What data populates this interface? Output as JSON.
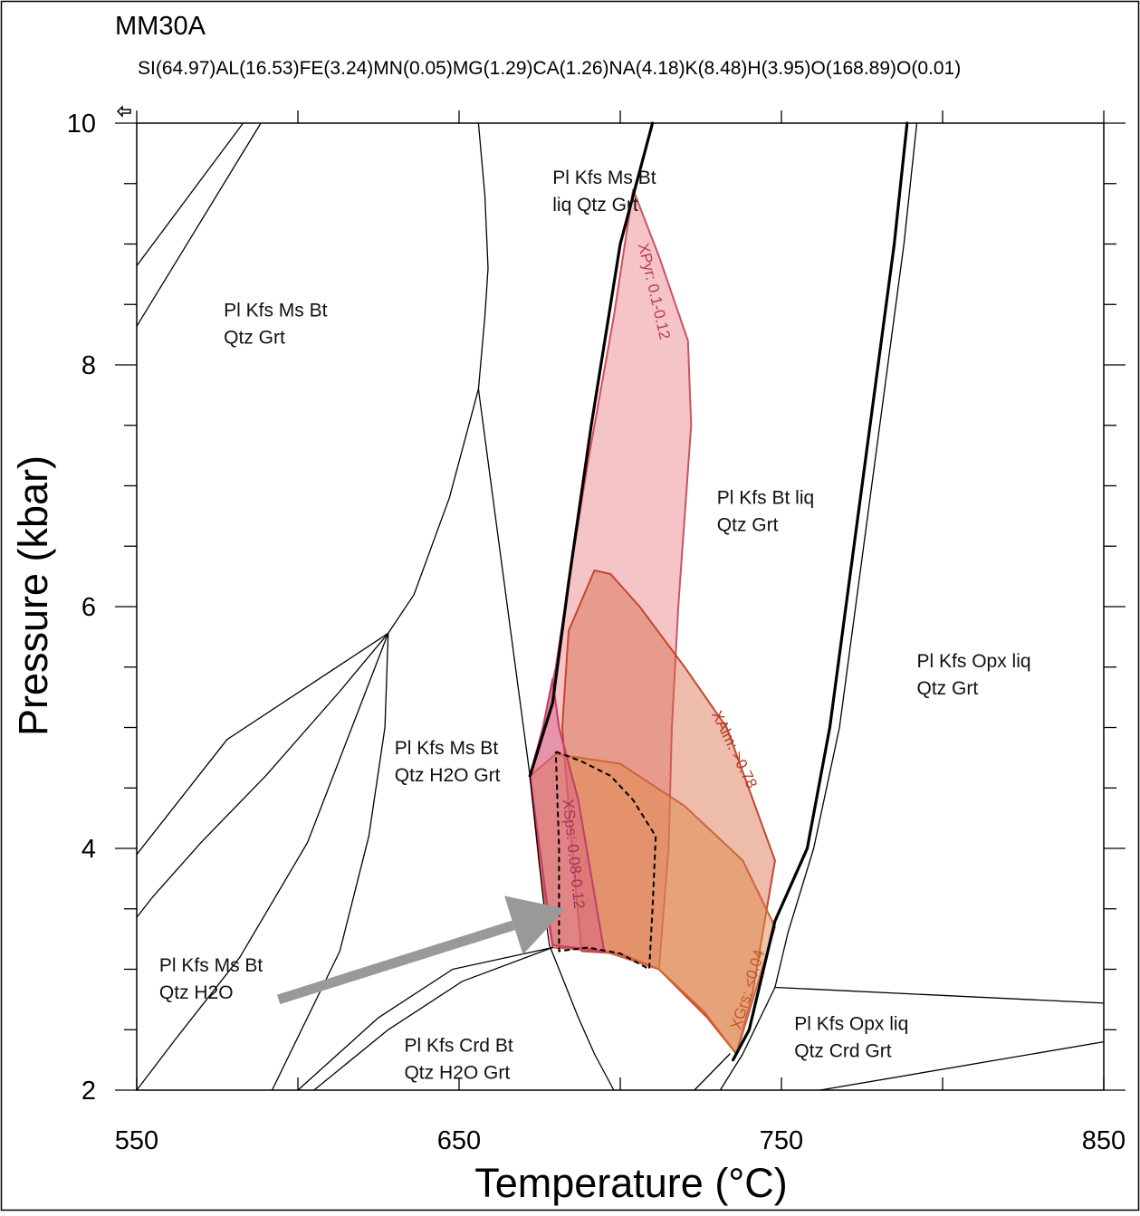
{
  "chart_data": {
    "type": "phase-diagram",
    "title": "MM30A",
    "subtitle": "SI(64.97)AL(16.53)FE(3.24)MN(0.05)MG(1.29)CA(1.26)NA(4.18)K(8.48)H(3.95)O(168.89)O(0.01)",
    "xlabel": "Temperature (°C)",
    "ylabel": "Pressure (kbar)",
    "xlim": [
      550,
      850
    ],
    "ylim": [
      2,
      10
    ],
    "x_tick_labels": [
      "550",
      "650",
      "750",
      "850"
    ],
    "y_tick_labels": [
      "2",
      "4",
      "6",
      "8",
      "10"
    ],
    "x_ticks": [
      550,
      600,
      650,
      700,
      750,
      800,
      850
    ],
    "y_ticks": [
      2,
      2.5,
      3,
      3.5,
      4,
      4.5,
      5,
      5.5,
      6,
      6.5,
      7,
      7.5,
      8,
      8.5,
      9,
      9.5,
      10
    ],
    "grid": false,
    "field_labels": [
      {
        "lines": [
          "Pl Kfs Ms Bt",
          "Qtz Grt"
        ],
        "x": 577,
        "y": 8.4
      },
      {
        "lines": [
          "Pl Kfs Ms Bt",
          "liq Qtz Grt"
        ],
        "x": 679,
        "y": 9.5
      },
      {
        "lines": [
          "Pl Kfs Bt liq",
          "Qtz Grt"
        ],
        "x": 730,
        "y": 6.85
      },
      {
        "lines": [
          "Pl Kfs Opx liq",
          "Qtz Grt"
        ],
        "x": 792,
        "y": 5.5
      },
      {
        "lines": [
          "Pl Kfs Ms Bt",
          "Qtz H2O Grt"
        ],
        "x": 630,
        "y": 4.78
      },
      {
        "lines": [
          "Pl Kfs Ms Bt",
          "Qtz H2O"
        ],
        "x": 557,
        "y": 2.98
      },
      {
        "lines": [
          "Pl Kfs Crd Bt",
          "Qtz H2O Grt"
        ],
        "x": 633,
        "y": 2.32
      },
      {
        "lines": [
          "Pl Kfs Opx liq",
          "Qtz Crd Grt"
        ],
        "x": 754,
        "y": 2.5
      }
    ],
    "boundaries": [
      {
        "width": 1.3,
        "points": [
          [
            550,
            8.82
          ],
          [
            583,
            10
          ]
        ]
      },
      {
        "width": 1.3,
        "points": [
          [
            550,
            8.32
          ],
          [
            588.5,
            10
          ]
        ]
      },
      {
        "width": 1.3,
        "points": [
          [
            656,
            10
          ],
          [
            658,
            9.4
          ],
          [
            659,
            8.8
          ],
          [
            658,
            8.4
          ],
          [
            656,
            7.8
          ],
          [
            647,
            6.9
          ],
          [
            636,
            6.1
          ],
          [
            628,
            5.78
          ],
          [
            613,
            5.3
          ],
          [
            590,
            4.6
          ],
          [
            570,
            4.05
          ],
          [
            555,
            3.6
          ],
          [
            550,
            3.43
          ]
        ]
      },
      {
        "width": 1.3,
        "points": [
          [
            656,
            7.8
          ],
          [
            662,
            6.6
          ],
          [
            669,
            5.2
          ],
          [
            672,
            4.6
          ],
          [
            676,
            3.6
          ],
          [
            678,
            3.2
          ],
          [
            681,
            3.0
          ],
          [
            687,
            2.6
          ],
          [
            692,
            2.3
          ],
          [
            698,
            2.0
          ]
        ]
      },
      {
        "width": 1.3,
        "points": [
          [
            628,
            5.78
          ],
          [
            578,
            4.9
          ],
          [
            550,
            3.95
          ]
        ]
      },
      {
        "width": 1.3,
        "points": [
          [
            628,
            5.78
          ],
          [
            627,
            5.0
          ],
          [
            622,
            4.1
          ],
          [
            613,
            3.15
          ],
          [
            592,
            2.0
          ]
        ]
      },
      {
        "width": 1.3,
        "points": [
          [
            628,
            5.78
          ],
          [
            603,
            4.05
          ],
          [
            582,
            3.1
          ],
          [
            562,
            2.42
          ],
          [
            550,
            2.0
          ]
        ]
      },
      {
        "width": 1.3,
        "points": [
          [
            679,
            3.18
          ],
          [
            648,
            3.0
          ],
          [
            625,
            2.6
          ],
          [
            600,
            2.0
          ]
        ]
      },
      {
        "width": 1.3,
        "points": [
          [
            679,
            3.18
          ],
          [
            651,
            2.9
          ],
          [
            628,
            2.5
          ],
          [
            605,
            2.0
          ]
        ]
      },
      {
        "width": 3.2,
        "points": [
          [
            710,
            10
          ],
          [
            700,
            9.0
          ],
          [
            691,
            7.5
          ],
          [
            684,
            6.2
          ],
          [
            679,
            5.2
          ],
          [
            672,
            4.6
          ]
        ]
      },
      {
        "width": 3.2,
        "points": [
          [
            789,
            10
          ],
          [
            785,
            9.0
          ],
          [
            775,
            7.0
          ],
          [
            765,
            5.0
          ],
          [
            758,
            4.0
          ],
          [
            748,
            3.4
          ],
          [
            740,
            2.5
          ],
          [
            735,
            2.25
          ]
        ]
      },
      {
        "width": 1.3,
        "points": [
          [
            792,
            10
          ],
          [
            788,
            9.0
          ],
          [
            778,
            7.0
          ],
          [
            768,
            5.0
          ],
          [
            760,
            4.0
          ],
          [
            752,
            3.3
          ],
          [
            748,
            2.85
          ],
          [
            738,
            2.3
          ],
          [
            731,
            2.0
          ]
        ]
      },
      {
        "width": 1.3,
        "points": [
          [
            734,
            2.3
          ],
          [
            723,
            2.0
          ]
        ]
      },
      {
        "width": 1.3,
        "points": [
          [
            748,
            2.85
          ],
          [
            850,
            2.72
          ]
        ]
      },
      {
        "width": 1.3,
        "points": [
          [
            762,
            2.0
          ],
          [
            850,
            2.4
          ]
        ]
      }
    ],
    "isopleth_fields": [
      {
        "name": "XPyr: 0.1-0.12",
        "fill": "#ea8a8e",
        "stroke": "#d24f5f",
        "opacity": 0.5,
        "points": [
          [
            704,
            9.45
          ],
          [
            698,
            8.4
          ],
          [
            690,
            7.2
          ],
          [
            684,
            6.2
          ],
          [
            680,
            5.5
          ],
          [
            676,
            5.0
          ],
          [
            672,
            4.6
          ],
          [
            675,
            4.0
          ],
          [
            677,
            3.6
          ],
          [
            679,
            3.2
          ],
          [
            690,
            3.15
          ],
          [
            695,
            3.15
          ],
          [
            702,
            3.1
          ],
          [
            712,
            3.0
          ],
          [
            715,
            4.0
          ],
          [
            716,
            5.0
          ],
          [
            718,
            6.0
          ],
          [
            722,
            7.5
          ],
          [
            721,
            8.2
          ],
          [
            712,
            8.9
          ]
        ]
      },
      {
        "name": "XAlm: >0.78",
        "fill": "#d66a44",
        "stroke": "#c8452e",
        "opacity": 0.45,
        "points": [
          [
            692,
            6.3
          ],
          [
            697,
            6.27
          ],
          [
            706,
            6.0
          ],
          [
            720,
            5.5
          ],
          [
            733,
            5.0
          ],
          [
            748,
            3.9
          ],
          [
            741,
            2.8
          ],
          [
            736,
            2.3
          ],
          [
            727,
            2.6
          ],
          [
            712,
            3.0
          ],
          [
            700,
            3.13
          ],
          [
            688,
            3.15
          ],
          [
            685,
            4.0
          ],
          [
            682,
            5.0
          ],
          [
            684,
            5.8
          ]
        ]
      },
      {
        "name": "XGrs: <0.04",
        "fill": "#e08a4a",
        "stroke": "#d0643a",
        "opacity": 0.5,
        "points": [
          [
            672,
            4.6
          ],
          [
            680,
            4.78
          ],
          [
            700,
            4.7
          ],
          [
            720,
            4.35
          ],
          [
            738,
            3.9
          ],
          [
            748,
            3.35
          ],
          [
            736,
            2.3
          ],
          [
            726,
            2.65
          ],
          [
            712,
            3.0
          ],
          [
            695,
            3.15
          ],
          [
            679,
            3.18
          ],
          [
            675,
            3.85
          ]
        ]
      },
      {
        "name": "XSps: 0.08-0.12",
        "fill": "#d45a86",
        "stroke": "#c43c72",
        "opacity": 0.45,
        "points": [
          [
            679,
            5.4
          ],
          [
            676,
            5.0
          ],
          [
            672,
            4.6
          ],
          [
            675,
            4.0
          ],
          [
            677,
            3.6
          ],
          [
            679,
            3.2
          ],
          [
            695,
            3.15
          ],
          [
            687,
            4.4
          ],
          [
            681,
            5.0
          ]
        ]
      }
    ],
    "dashed_outline": [
      [
        680,
        4.8
      ],
      [
        688,
        4.72
      ],
      [
        697,
        4.6
      ],
      [
        704,
        4.4
      ],
      [
        711,
        4.1
      ],
      [
        710,
        3.5
      ],
      [
        709,
        3.0
      ],
      [
        700,
        3.13
      ],
      [
        690,
        3.18
      ],
      [
        681,
        3.15
      ],
      [
        681,
        4.0
      ],
      [
        680,
        4.8
      ]
    ],
    "isopleth_labels": [
      {
        "text": "XPyr: 0.1-0.12",
        "x": 709,
        "y": 8.6,
        "angle": 77,
        "color": "#c0394d"
      },
      {
        "text": "XAlm: >0.78",
        "x": 734,
        "y": 4.8,
        "angle": 64,
        "color": "#b23a22"
      },
      {
        "text": "XSps: 0.08-0.12",
        "x": 684,
        "y": 3.95,
        "angle": 84,
        "color": "#a83060"
      },
      {
        "text": "XGrs: <0.04",
        "x": 741,
        "y": 2.82,
        "angle": -73,
        "color": "#c25a2c"
      }
    ],
    "arrow": {
      "from": [
        594,
        2.75
      ],
      "to": [
        683,
        3.5
      ],
      "color": "#999999"
    }
  }
}
